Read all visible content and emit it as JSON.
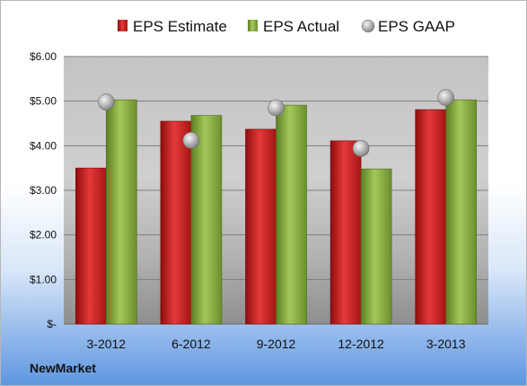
{
  "company": "NewMarket",
  "colors": {
    "estimate": "#c81e1e",
    "actual": "#86ad3c",
    "gaap": "#a8a8a8"
  },
  "chart_data": {
    "type": "bar",
    "categories": [
      "3-2012",
      "6-2012",
      "9-2012",
      "12-2012",
      "3-2013"
    ],
    "series": [
      {
        "name": "EPS Estimate",
        "values": [
          3.5,
          4.55,
          4.37,
          4.11,
          4.81
        ]
      },
      {
        "name": "EPS Actual",
        "values": [
          5.03,
          4.68,
          4.91,
          3.48,
          5.03
        ]
      },
      {
        "name": "EPS GAAP",
        "kind": "scatter",
        "values": [
          4.98,
          4.12,
          4.85,
          3.94,
          5.08
        ]
      }
    ],
    "ylim": [
      0,
      6
    ],
    "yticks": [
      0,
      1,
      2,
      3,
      4,
      5,
      6
    ],
    "ytick_labels": [
      "$-",
      "$1.00",
      "$2.00",
      "$3.00",
      "$4.00",
      "$5.00",
      "$6.00"
    ],
    "grid": true,
    "legend_position": "top"
  }
}
